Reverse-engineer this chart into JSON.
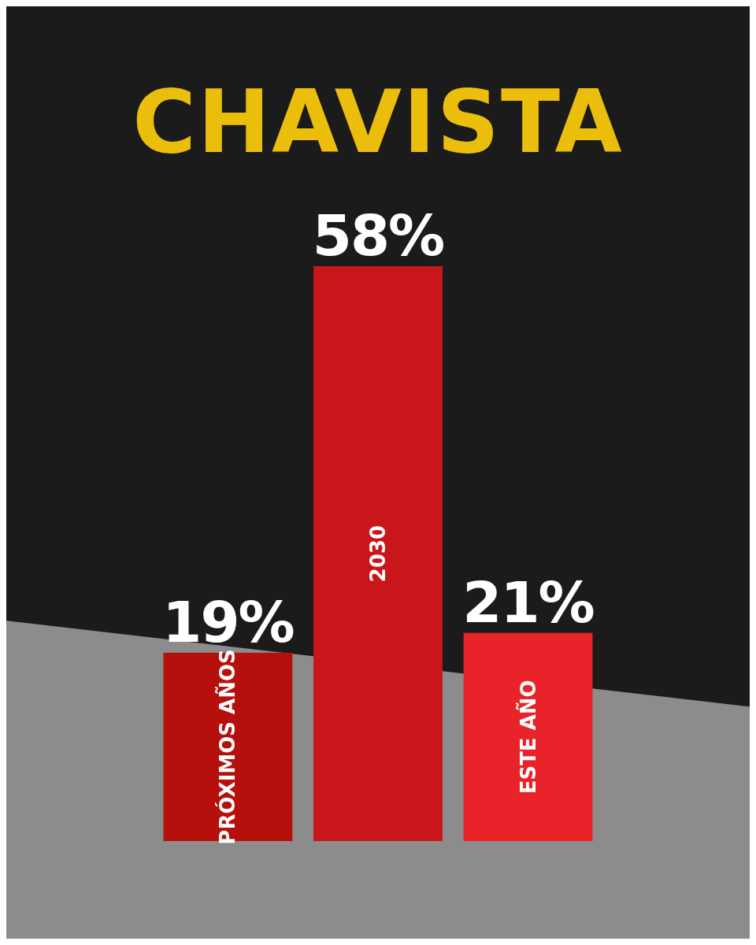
{
  "chart_data": {
    "type": "bar",
    "title": "CHAVISTA",
    "categories": [
      "PRÓXIMOS AÑOS",
      "2030",
      "ESTE AÑO"
    ],
    "values": [
      19,
      58,
      21
    ],
    "colors": [
      "#b5100c",
      "#c8161a",
      "#e8232a"
    ],
    "value_labels": [
      "19%",
      "58%",
      "21%"
    ]
  }
}
